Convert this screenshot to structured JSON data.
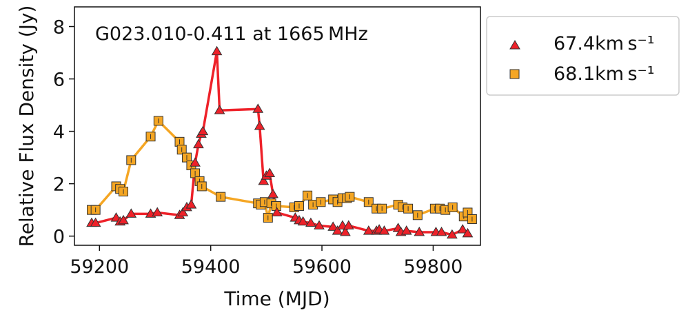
{
  "chart_data": {
    "type": "line",
    "title": "G023.010-0.411 at 1665 MHz",
    "xlabel": "Time (MJD)",
    "ylabel": "Relative Flux Density (Jy)",
    "xlim": [
      59155,
      59885
    ],
    "ylim": [
      -0.35,
      8.75
    ],
    "xticks": [
      59200,
      59400,
      59600,
      59800
    ],
    "yticks": [
      0,
      2,
      4,
      6,
      8
    ],
    "grid": false,
    "legend_position": "outside-right",
    "series": [
      {
        "name": "67.4km s⁻¹",
        "marker": "triangle",
        "color": "#ee2129",
        "marker_edge": "#333333",
        "x": [
          59186,
          59193,
          59230,
          59237,
          59243,
          59257,
          59292,
          59304,
          59344,
          59350,
          59357,
          59365,
          59372,
          59378,
          59383,
          59386,
          59411,
          59416,
          59485,
          59488,
          59495,
          59500,
          59506,
          59512,
          59519,
          59552,
          59559,
          59566,
          59580,
          59595,
          59620,
          59628,
          59637,
          59642,
          59648,
          59684,
          59698,
          59703,
          59712,
          59737,
          59742,
          59752,
          59775,
          59805,
          59815,
          59834,
          59853,
          59862
        ],
        "y": [
          0.5,
          0.5,
          0.7,
          0.55,
          0.6,
          0.85,
          0.85,
          0.9,
          0.8,
          0.9,
          1.1,
          1.2,
          2.8,
          3.5,
          3.9,
          4.0,
          7.05,
          4.8,
          4.85,
          4.2,
          2.1,
          2.3,
          2.4,
          1.6,
          0.9,
          0.7,
          0.6,
          0.55,
          0.5,
          0.4,
          0.35,
          0.2,
          0.4,
          0.15,
          0.4,
          0.2,
          0.2,
          0.25,
          0.2,
          0.3,
          0.15,
          0.2,
          0.15,
          0.15,
          0.15,
          0.05,
          0.25,
          0.1
        ]
      },
      {
        "name": "68.1km s⁻¹",
        "marker": "square",
        "color": "#f5a623",
        "marker_edge": "#333333",
        "x": [
          59186,
          59193,
          59230,
          59237,
          59243,
          59257,
          59292,
          59306,
          59344,
          59348,
          59357,
          59365,
          59372,
          59380,
          59384,
          59418,
          59485,
          59490,
          59497,
          59503,
          59509,
          59518,
          59550,
          59559,
          59574,
          59584,
          59598,
          59620,
          59628,
          59637,
          59645,
          59650,
          59684,
          59698,
          59708,
          59737,
          59745,
          59755,
          59772,
          59803,
          59812,
          59822,
          59835,
          59855,
          59862,
          59870
        ],
        "y": [
          1.0,
          1.0,
          1.9,
          1.8,
          1.7,
          2.9,
          3.8,
          4.4,
          3.6,
          3.3,
          3.0,
          2.7,
          2.4,
          2.1,
          1.9,
          1.5,
          1.25,
          1.2,
          1.3,
          0.7,
          1.25,
          1.15,
          1.1,
          1.15,
          1.55,
          1.2,
          1.3,
          1.4,
          1.3,
          1.45,
          1.45,
          1.5,
          1.3,
          1.05,
          1.05,
          1.2,
          1.1,
          1.05,
          0.8,
          1.05,
          1.05,
          1.0,
          1.1,
          0.75,
          0.9,
          0.65
        ]
      }
    ]
  }
}
